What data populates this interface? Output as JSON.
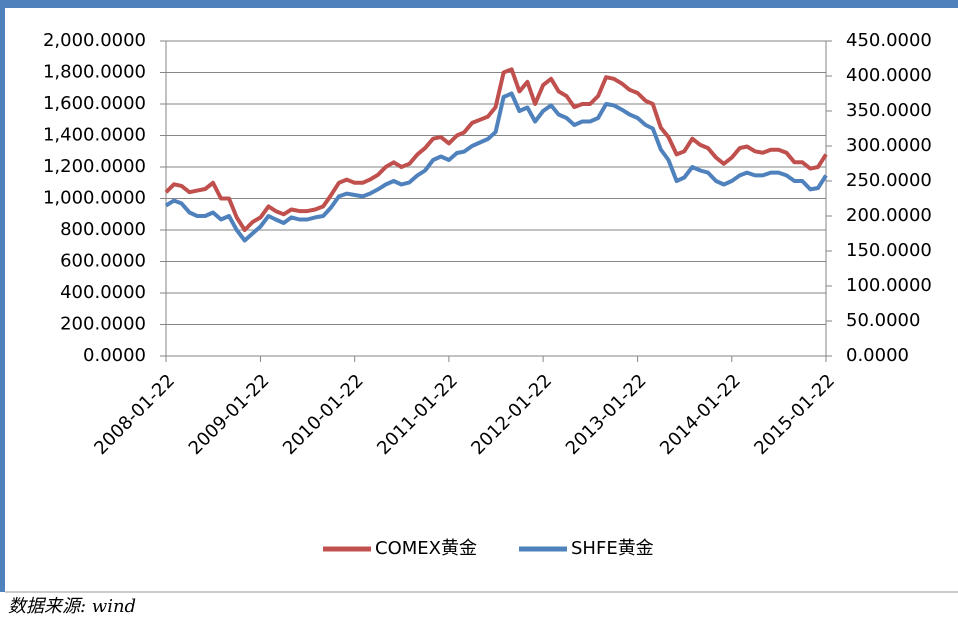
{
  "chart_data": {
    "type": "line",
    "x": [
      "2008-01-22",
      "2008-02-22",
      "2008-03-22",
      "2008-04-22",
      "2008-05-22",
      "2008-06-22",
      "2008-07-22",
      "2008-08-22",
      "2008-09-22",
      "2008-10-22",
      "2008-11-22",
      "2008-12-22",
      "2009-01-22",
      "2009-02-22",
      "2009-03-22",
      "2009-04-22",
      "2009-05-22",
      "2009-06-22",
      "2009-07-22",
      "2009-08-22",
      "2009-09-22",
      "2009-10-22",
      "2009-11-22",
      "2009-12-22",
      "2010-01-22",
      "2010-02-22",
      "2010-03-22",
      "2010-04-22",
      "2010-05-22",
      "2010-06-22",
      "2010-07-22",
      "2010-08-22",
      "2010-09-22",
      "2010-10-22",
      "2010-11-22",
      "2010-12-22",
      "2011-01-22",
      "2011-02-22",
      "2011-03-22",
      "2011-04-22",
      "2011-05-22",
      "2011-06-22",
      "2011-07-22",
      "2011-08-22",
      "2011-09-22",
      "2011-10-22",
      "2011-11-22",
      "2011-12-22",
      "2012-01-22",
      "2012-02-22",
      "2012-03-22",
      "2012-04-22",
      "2012-05-22",
      "2012-06-22",
      "2012-07-22",
      "2012-08-22",
      "2012-09-22",
      "2012-10-22",
      "2012-11-22",
      "2012-12-22",
      "2013-01-22",
      "2013-02-22",
      "2013-03-22",
      "2013-04-22",
      "2013-05-22",
      "2013-06-22",
      "2013-07-22",
      "2013-08-22",
      "2013-09-22",
      "2013-10-22",
      "2013-11-22",
      "2013-12-22",
      "2014-01-22",
      "2014-02-22",
      "2014-03-22",
      "2014-04-22",
      "2014-05-22",
      "2014-06-22",
      "2014-07-22",
      "2014-08-22",
      "2014-09-22",
      "2014-10-22",
      "2014-11-22",
      "2014-12-22",
      "2015-01-22"
    ],
    "series": [
      {
        "name": "COMEX黄金",
        "color": "#c0504d",
        "values": [
          1040,
          1090,
          1080,
          1040,
          1050,
          1060,
          1100,
          1000,
          1000,
          880,
          800,
          850,
          880,
          950,
          920,
          900,
          930,
          920,
          920,
          930,
          950,
          1020,
          1100,
          1120,
          1100,
          1100,
          1120,
          1150,
          1200,
          1230,
          1200,
          1220,
          1280,
          1320,
          1380,
          1390,
          1350,
          1400,
          1420,
          1480,
          1500,
          1520,
          1580,
          1800,
          1820,
          1680,
          1740,
          1600,
          1720,
          1760,
          1680,
          1650,
          1580,
          1600,
          1600,
          1650,
          1770,
          1760,
          1730,
          1690,
          1670,
          1620,
          1600,
          1450,
          1390,
          1280,
          1300,
          1380,
          1340,
          1320,
          1260,
          1220,
          1260,
          1320,
          1330,
          1300,
          1290,
          1310,
          1310,
          1290,
          1230,
          1230,
          1190,
          1200,
          1280
        ]
      },
      {
        "name": "SHFE黄金",
        "color": "#4f81bd",
        "axis": "y2",
        "values": [
          215,
          222,
          218,
          205,
          200,
          200,
          205,
          195,
          200,
          180,
          165,
          175,
          185,
          200,
          195,
          190,
          198,
          195,
          195,
          198,
          200,
          212,
          228,
          232,
          230,
          228,
          232,
          238,
          245,
          250,
          245,
          248,
          258,
          265,
          280,
          285,
          280,
          290,
          292,
          300,
          305,
          310,
          320,
          370,
          375,
          350,
          355,
          335,
          350,
          358,
          345,
          340,
          330,
          335,
          335,
          340,
          360,
          358,
          352,
          345,
          340,
          330,
          325,
          295,
          280,
          250,
          255,
          270,
          265,
          262,
          250,
          245,
          250,
          258,
          262,
          258,
          258,
          262,
          262,
          258,
          250,
          250,
          238,
          240,
          258
        ]
      }
    ],
    "xlim": [
      "2008-01-22",
      "2015-01-22"
    ],
    "xticks": [
      "2008-01-22",
      "2009-01-22",
      "2010-01-22",
      "2011-01-22",
      "2012-01-22",
      "2013-01-22",
      "2014-01-22",
      "2015-01-22"
    ],
    "ylim": [
      0,
      2000
    ],
    "yticks": [
      {
        "value": 0,
        "label": "0.0000"
      },
      {
        "value": 200,
        "label": "200.0000"
      },
      {
        "value": 400,
        "label": "400.0000"
      },
      {
        "value": 600,
        "label": "600.0000"
      },
      {
        "value": 800,
        "label": "800.0000"
      },
      {
        "value": 1000,
        "label": "1,000.0000"
      },
      {
        "value": 1200,
        "label": "1,200.0000"
      },
      {
        "value": 1400,
        "label": "1,400.0000"
      },
      {
        "value": 1600,
        "label": "1,600.0000"
      },
      {
        "value": 1800,
        "label": "1,800.0000"
      },
      {
        "value": 2000,
        "label": "2,000.0000"
      }
    ],
    "y2lim": [
      0,
      450
    ],
    "y2ticks": [
      {
        "value": 0,
        "label": "0.0000"
      },
      {
        "value": 50,
        "label": "50.0000"
      },
      {
        "value": 100,
        "label": "100.0000"
      },
      {
        "value": 150,
        "label": "150.0000"
      },
      {
        "value": 200,
        "label": "200.0000"
      },
      {
        "value": 250,
        "label": "250.0000"
      },
      {
        "value": 300,
        "label": "300.0000"
      },
      {
        "value": 350,
        "label": "350.0000"
      },
      {
        "value": 400,
        "label": "400.0000"
      },
      {
        "value": 450,
        "label": "450.0000"
      }
    ],
    "grid": true,
    "legend": "bottom",
    "source": "数据来源: wind"
  }
}
